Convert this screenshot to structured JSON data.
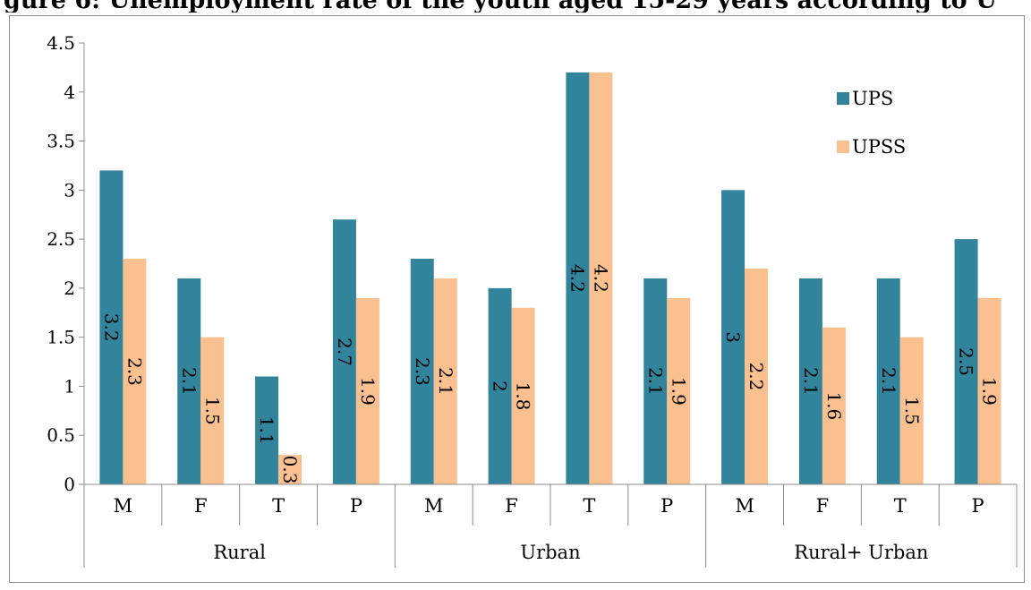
{
  "title": "gure 6: Unemployment rate of the youth aged 15-29 years according to U",
  "chart_data": {
    "type": "bar",
    "groups": [
      "Rural",
      "Urban",
      "Rural+ Urban"
    ],
    "categories": [
      "M",
      "F",
      "T",
      "P",
      "M",
      "F",
      "T",
      "P",
      "M",
      "F",
      "T",
      "P"
    ],
    "series": [
      {
        "name": "UPS",
        "color": "#31849b",
        "values": [
          3.2,
          2.1,
          1.1,
          2.7,
          2.3,
          2.0,
          4.2,
          2.1,
          3.0,
          2.1,
          2.1,
          2.5
        ]
      },
      {
        "name": "UPSS",
        "color": "#fac090",
        "values": [
          2.3,
          1.5,
          0.3,
          1.9,
          2.1,
          1.8,
          4.2,
          1.9,
          2.2,
          1.6,
          1.5,
          1.9
        ]
      }
    ],
    "y_ticks": [
      "0",
      "0.5",
      "1",
      "1.5",
      "2",
      "2.5",
      "3",
      "3.5",
      "4",
      "4.5"
    ],
    "ylim": [
      0,
      4.5
    ],
    "xlabel": "",
    "ylabel": "",
    "grid": false,
    "legend_position": "top-right"
  }
}
